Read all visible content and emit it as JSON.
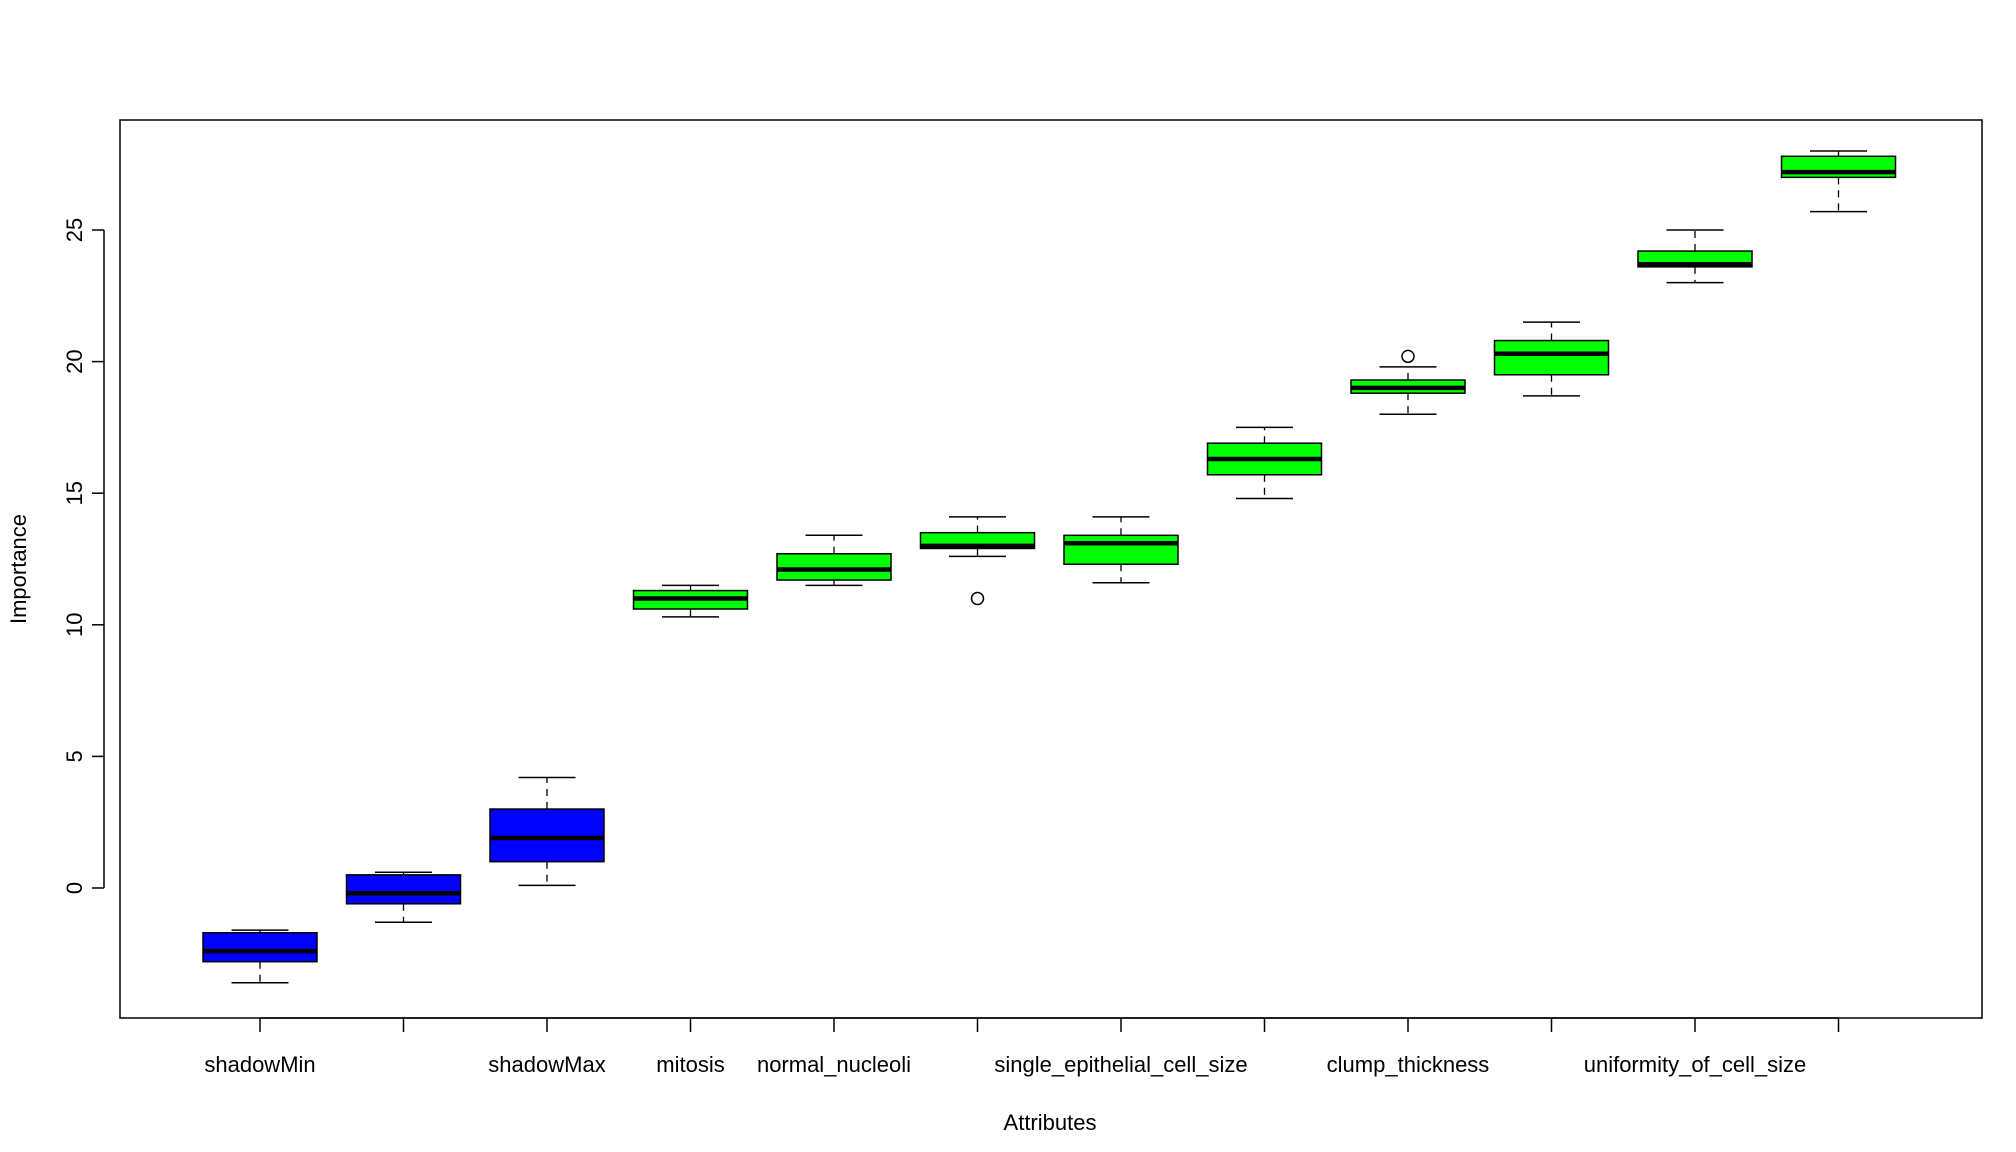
{
  "chart_data": {
    "type": "boxplot",
    "xlabel": "Attributes",
    "ylabel": "Importance",
    "ylim": [
      -5,
      29
    ],
    "y_ticks": [
      0,
      5,
      10,
      15,
      20,
      25
    ],
    "x_tick_labels_shown": [
      "shadowMin",
      "",
      "shadowMax",
      "mitosis",
      "normal_nucleoli",
      "",
      "single_epithelial_cell_size",
      "",
      "clump_thickness",
      "",
      "uniformity_of_cell_size",
      ""
    ],
    "colors": {
      "shadow": "#0000ff",
      "confirmed": "#00ff00"
    },
    "boxes": [
      {
        "label": "shadowMin",
        "min": -3.6,
        "q1": -2.8,
        "median": -2.4,
        "q3": -1.7,
        "max": -1.6,
        "color": "#0000ff",
        "outliers": []
      },
      {
        "label": "",
        "min": -1.3,
        "q1": -0.6,
        "median": -0.2,
        "q3": 0.5,
        "max": 0.6,
        "color": "#0000ff",
        "outliers": []
      },
      {
        "label": "shadowMax",
        "min": 0.1,
        "q1": 1.0,
        "median": 1.9,
        "q3": 3.0,
        "max": 4.2,
        "color": "#0000ff",
        "outliers": []
      },
      {
        "label": "mitosis",
        "min": 10.3,
        "q1": 10.6,
        "median": 11.0,
        "q3": 11.3,
        "max": 11.5,
        "color": "#00ff00",
        "outliers": []
      },
      {
        "label": "normal_nucleoli",
        "min": 11.5,
        "q1": 11.7,
        "median": 12.1,
        "q3": 12.7,
        "max": 13.4,
        "color": "#00ff00",
        "outliers": []
      },
      {
        "label": "",
        "min": 12.6,
        "q1": 12.9,
        "median": 13.0,
        "q3": 13.5,
        "max": 14.1,
        "color": "#00ff00",
        "outliers": [
          11.0
        ]
      },
      {
        "label": "single_epithelial_cell_size",
        "min": 11.6,
        "q1": 12.3,
        "median": 13.1,
        "q3": 13.4,
        "max": 14.1,
        "color": "#00ff00",
        "outliers": []
      },
      {
        "label": "",
        "min": 14.8,
        "q1": 15.7,
        "median": 16.3,
        "q3": 16.9,
        "max": 17.5,
        "color": "#00ff00",
        "outliers": []
      },
      {
        "label": "clump_thickness",
        "min": 18.0,
        "q1": 18.8,
        "median": 19.0,
        "q3": 19.3,
        "max": 19.8,
        "color": "#00ff00",
        "outliers": [
          20.2
        ]
      },
      {
        "label": "",
        "min": 18.7,
        "q1": 19.5,
        "median": 20.3,
        "q3": 20.8,
        "max": 21.5,
        "color": "#00ff00",
        "outliers": []
      },
      {
        "label": "uniformity_of_cell_size",
        "min": 23.0,
        "q1": 23.6,
        "median": 23.7,
        "q3": 24.2,
        "max": 25.0,
        "color": "#00ff00",
        "outliers": []
      },
      {
        "label": "",
        "min": 25.7,
        "q1": 27.0,
        "median": 27.2,
        "q3": 27.8,
        "max": 28.0,
        "color": "#00ff00",
        "outliers": []
      }
    ]
  }
}
